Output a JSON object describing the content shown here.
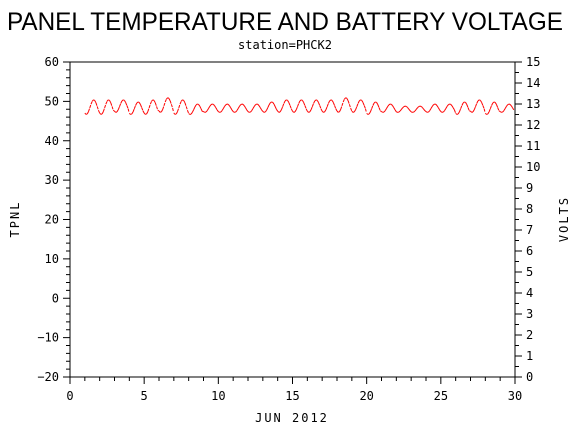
{
  "chart_data": {
    "type": "line",
    "title": "PANEL TEMPERATURE AND BATTERY VOLTAGE",
    "subtitle": "station=PHCK2",
    "xlabel": "JUN 2012",
    "ylabel_left": "TPNL",
    "ylabel_right": "VOLTS",
    "x_range": [
      0,
      30
    ],
    "ylim_left": [
      -20,
      60
    ],
    "ylim_right": [
      0,
      15
    ],
    "x_ticks": [
      0,
      5,
      10,
      15,
      20,
      25,
      30
    ],
    "y_ticks_left": [
      -20,
      -10,
      0,
      10,
      20,
      30,
      40,
      50,
      60
    ],
    "y_ticks_right": [
      0,
      1,
      2,
      3,
      4,
      5,
      6,
      7,
      8,
      9,
      10,
      11,
      12,
      13,
      14,
      15
    ],
    "grid": false,
    "series": [
      {
        "axis": "right",
        "color": "#ff0000",
        "style": "dashed",
        "daily_min_volts": [
          12.5,
          12.5,
          12.6,
          12.5,
          12.5,
          12.6,
          12.5,
          12.5,
          12.6,
          12.6,
          12.6,
          12.6,
          12.6,
          12.6,
          12.6,
          12.6,
          12.6,
          12.6,
          12.6,
          12.5,
          12.6,
          12.6,
          12.6,
          12.6,
          12.6,
          12.5,
          12.6,
          12.5,
          12.6
        ],
        "daily_max_volts": [
          13.2,
          13.2,
          13.2,
          13.1,
          13.2,
          13.3,
          13.2,
          13.0,
          13.0,
          13.0,
          13.0,
          13.0,
          13.1,
          13.2,
          13.2,
          13.2,
          13.2,
          13.3,
          13.2,
          13.1,
          13.0,
          12.9,
          12.9,
          13.0,
          13.0,
          13.1,
          13.2,
          13.1,
          13.0
        ]
      }
    ]
  }
}
